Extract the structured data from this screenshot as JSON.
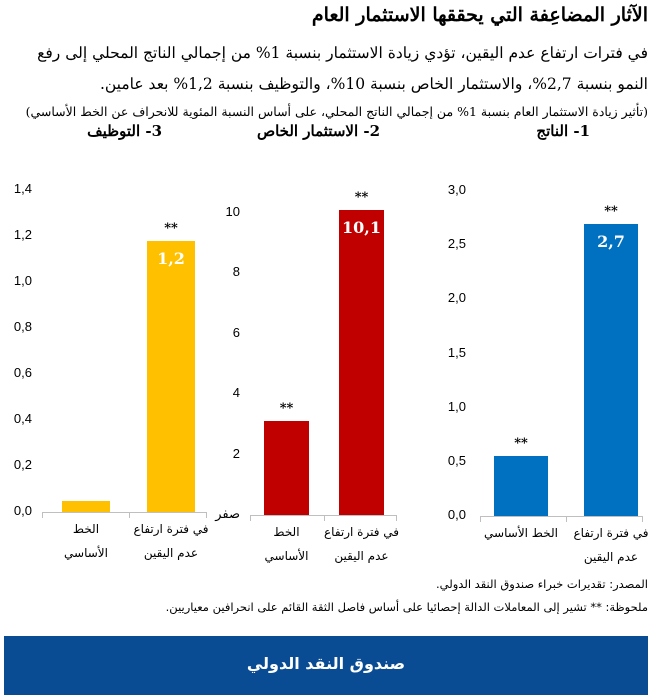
{
  "header": {
    "title": "الآثار المضاعِفة التي يحققها الاستثمار العام",
    "subtitle": "في فترات ارتفاع عدم اليقين، تؤدي زيادة الاستثمار بنسبة 1% من إجمالي الناتج المحلي إلى رفع النمو بنسبة 2,7%، والاستثمار الخاص بنسبة 10%، والتوظيف بنسبة 1,2% بعد عامين.",
    "note": "(تأثير زيادة الاستثمار العام بنسبة 1% من إجمالي الناتج المحلي، على أساس النسبة المئوية للانحراف عن الخط الأساسي)"
  },
  "colors": {
    "output": "#0070c0",
    "private_investment": "#c00000",
    "employment": "#ffc000",
    "banner": "#0a4c93"
  },
  "chart_data": [
    {
      "type": "bar",
      "title": "1- الناتج",
      "categories": [
        "الخط الأساسي",
        "في فترة ارتفاع عدم اليقين"
      ],
      "category_lines": [
        [
          "الخط الأساسي"
        ],
        [
          "في فترة ارتفاع",
          "عدم اليقين"
        ]
      ],
      "values": [
        0.55,
        2.7
      ],
      "data_labels": [
        "",
        "2,7"
      ],
      "significance": [
        "**",
        "**"
      ],
      "yticks": [
        "0,0",
        "0,5",
        "1,0",
        "1,5",
        "2,0",
        "2,5",
        "3,0"
      ],
      "ylim": [
        0,
        3
      ],
      "color": "#0070c0"
    },
    {
      "type": "bar",
      "title": "2- الاستثمار الخاص",
      "categories": [
        "الخط الأساسي",
        "في فترة ارتفاع عدم اليقين"
      ],
      "category_lines": [
        [
          "الخط",
          "الأساسي"
        ],
        [
          "في فترة ارتفاع",
          "عدم اليقين"
        ]
      ],
      "values": [
        3.1,
        10.1
      ],
      "data_labels": [
        "",
        "10,1"
      ],
      "significance": [
        "**",
        "**"
      ],
      "yticks": [
        "صفر",
        "2",
        "4",
        "6",
        "8",
        "10"
      ],
      "ylim": [
        0,
        10
      ],
      "color": "#c00000"
    },
    {
      "type": "bar",
      "title": "3- التوظيف",
      "categories": [
        "الخط الأساسي",
        "في فترة ارتفاع عدم اليقين"
      ],
      "category_lines": [
        [
          "الخط",
          "الأساسي"
        ],
        [
          "في فترة ارتفاع",
          "عدم اليقين"
        ]
      ],
      "values": [
        0.05,
        1.18
      ],
      "data_labels": [
        "",
        "1,2"
      ],
      "significance": [
        "",
        "**"
      ],
      "yticks": [
        "0,0",
        "0,2",
        "0,4",
        "0,6",
        "0,8",
        "1,0",
        "1,2",
        "1,4"
      ],
      "ylim": [
        0,
        1.4
      ],
      "color": "#ffc000"
    }
  ],
  "footer": {
    "source": "المصدر: تقديرات خبراء صندوق النقد الدولي.",
    "note": "ملحوظة: ** تشير إلى المعاملات الدالة إحصائيا على أساس فاصل الثقة القائم على انحرافين معياريين."
  },
  "banner": {
    "label": "صندوق النقد الدولي"
  }
}
